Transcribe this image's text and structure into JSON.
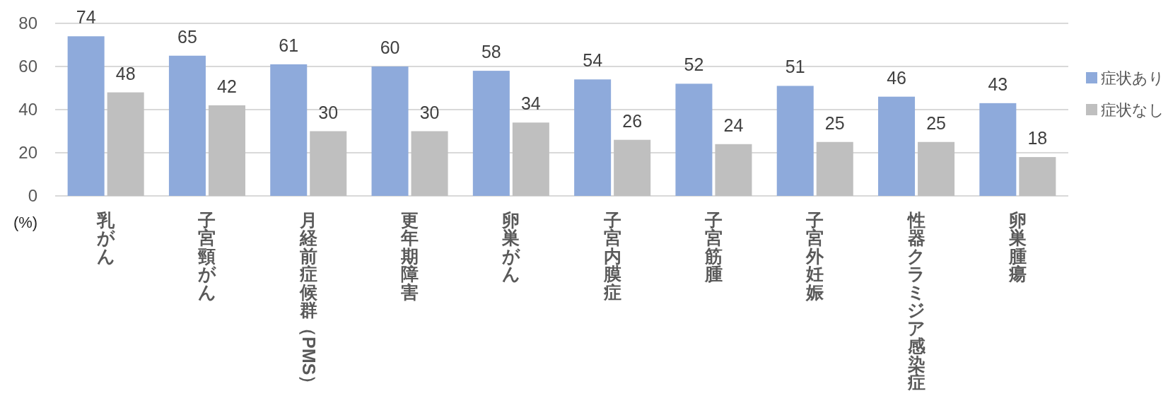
{
  "chart_data": {
    "type": "bar",
    "ylabel": "(%)",
    "categories": [
      "乳がん",
      "子宮頸がん",
      "月経前症候群（PMS）",
      "更年期障害",
      "卵巣がん",
      "子宮内膜症",
      "子宮筋腫",
      "子宮外妊娠",
      "性器クラミジア感染症",
      "卵巣腫瘍"
    ],
    "series": [
      {
        "name": "症状あり",
        "color": "#8eaadb",
        "values": [
          74,
          65,
          61,
          60,
          58,
          54,
          52,
          51,
          46,
          43
        ]
      },
      {
        "name": "症状なし",
        "color": "#bfbfbf",
        "values": [
          48,
          42,
          30,
          30,
          34,
          26,
          24,
          25,
          25,
          18
        ]
      }
    ],
    "ylim": [
      0,
      80
    ],
    "yticks": [
      0,
      20,
      40,
      60,
      80
    ],
    "grid": "y",
    "legend": "right",
    "data_labels": true
  }
}
